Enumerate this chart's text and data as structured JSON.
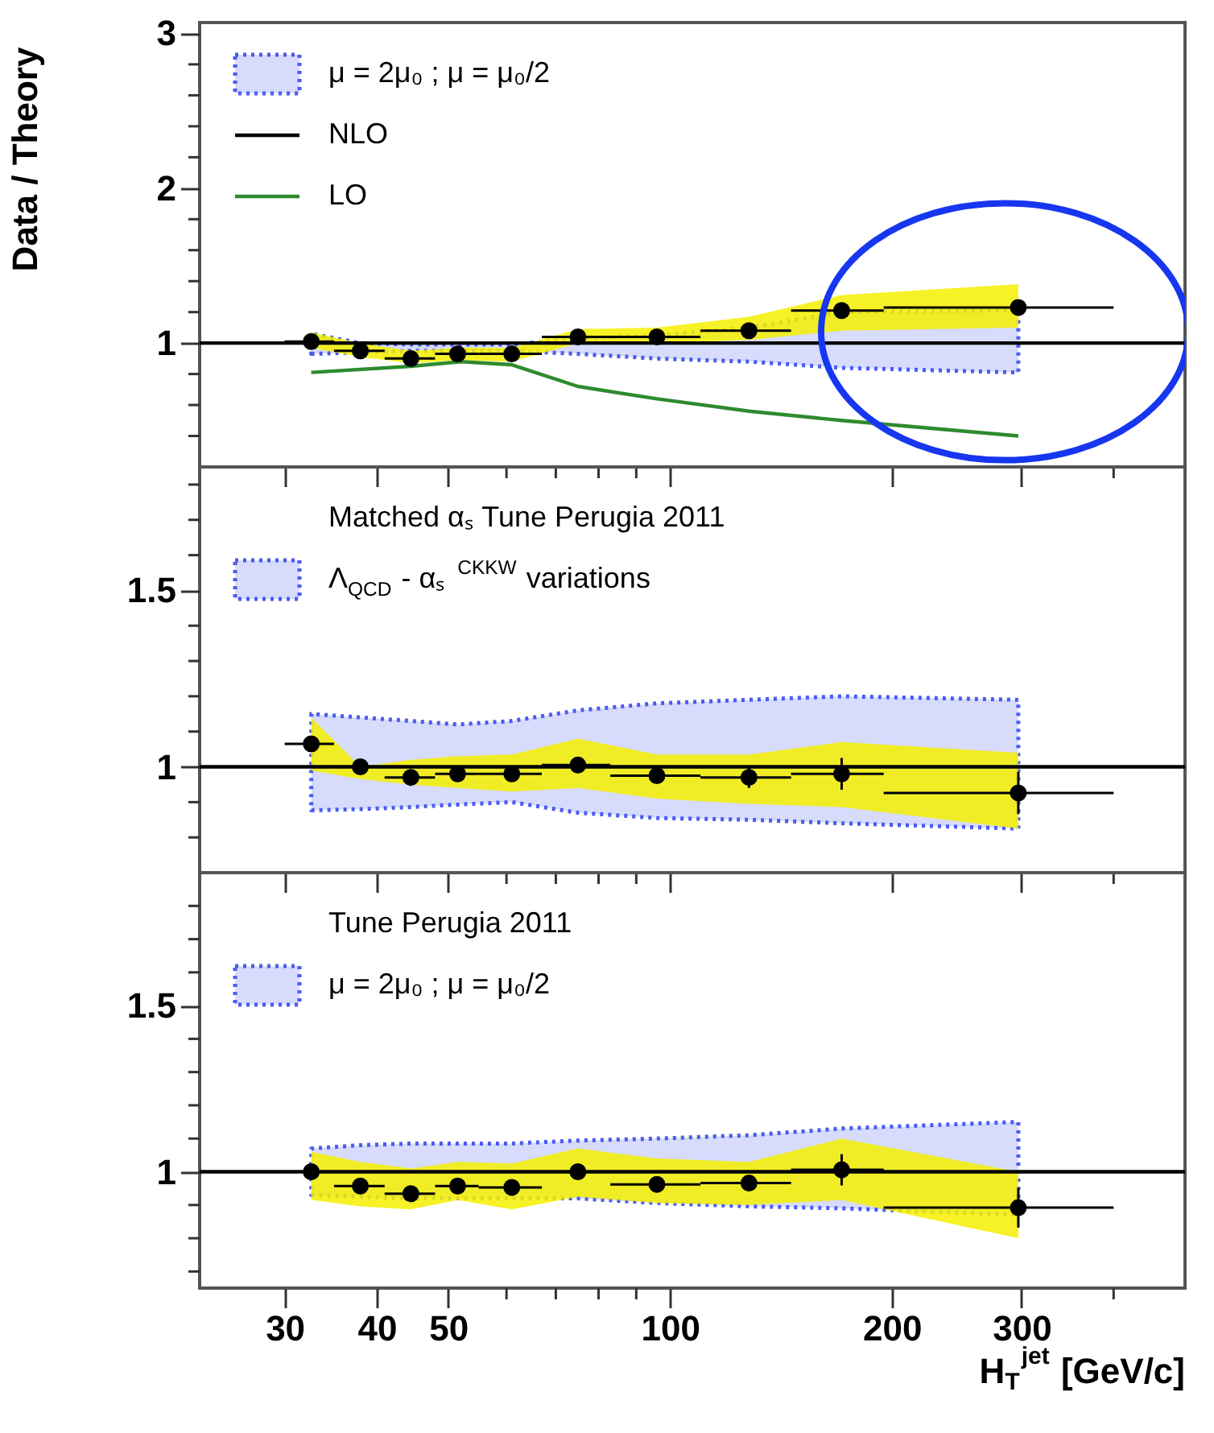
{
  "chart_data": [
    {
      "type": "scatter",
      "ylabel": "Data / Theory",
      "log": "x",
      "xlim": [
        23,
        500
      ],
      "ylim": [
        0.2,
        3.07
      ],
      "xticks": [
        30,
        40,
        50,
        {
          "value": 60,
          "label": null
        },
        {
          "value": 70,
          "label": null
        },
        {
          "value": 80,
          "label": null
        },
        {
          "value": 90,
          "label": null
        },
        100,
        200,
        300,
        {
          "value": 400,
          "label": null
        }
      ],
      "yticks": [
        {
          "value": 0.4,
          "label": null
        },
        {
          "value": 0.6,
          "label": null
        },
        {
          "value": 0.8,
          "label": null
        },
        1,
        {
          "value": 1.2,
          "label": null
        },
        {
          "value": 1.4,
          "label": null
        },
        {
          "value": 1.6,
          "label": null
        },
        {
          "value": 1.8,
          "label": null
        },
        2,
        {
          "value": 2.2,
          "label": null
        },
        {
          "value": 2.4,
          "label": null
        },
        {
          "value": 2.6,
          "label": null
        },
        {
          "value": 2.8,
          "label": null
        },
        3
      ],
      "tick_labels": "y",
      "grid": false,
      "legend": "top left",
      "series": [
        {
          "name": "μ = 2μ₀ ; μ = μ₀/2",
          "type": "line",
          "color": "#4a5cf0",
          "line_style": "dotted",
          "x": [
            32.6,
            38,
            44.5,
            51.5,
            61,
            75,
            96,
            128,
            171,
            297
          ],
          "values": [
            null,
            null,
            null,
            null,
            null,
            null,
            null,
            null,
            null,
            null
          ],
          "lower": [
            0.93,
            0.94,
            0.95,
            0.95,
            0.95,
            0.93,
            0.9,
            0.88,
            0.84,
            0.81
          ],
          "upper": [
            1.06,
            1.0,
            0.99,
            0.99,
            0.99,
            1.03,
            1.05,
            1.1,
            1.2,
            1.21
          ]
        },
        {
          "name": "NLO",
          "type": "line",
          "color": "#000000",
          "x": [
            23,
            500
          ],
          "values": [
            1,
            1
          ]
        },
        {
          "name": "LO",
          "type": "line",
          "color": "#2e8b2e",
          "x": [
            32.6,
            44.5,
            52,
            61,
            75,
            96,
            128,
            171,
            297
          ],
          "values": [
            0.81,
            0.85,
            0.88,
            0.86,
            0.72,
            0.64,
            0.56,
            0.5,
            0.4
          ]
        },
        {
          "color": "#000000",
          "marker": "circle",
          "x": [
            32.6,
            38,
            44.5,
            51.5,
            61,
            75,
            96,
            128,
            171,
            297
          ],
          "values": [
            1.01,
            0.95,
            0.9,
            0.93,
            0.93,
            1.04,
            1.04,
            1.08,
            1.21,
            1.23
          ],
          "lower": [
            0.97,
            0.91,
            0.87,
            0.89,
            0.88,
            1.0,
            1.0,
            1.02,
            1.08,
            1.1
          ],
          "upper": [
            1.07,
            1.0,
            0.95,
            0.97,
            0.97,
            1.09,
            1.1,
            1.17,
            1.31,
            1.38
          ],
          "errors": [
            null,
            null,
            null,
            null,
            null,
            null,
            null,
            null,
            0.03,
            0.04
          ],
          "xerrors": [
            [
              30,
              35
            ],
            [
              35,
              41
            ],
            [
              41,
              48
            ],
            [
              48,
              55
            ],
            [
              55,
              67
            ],
            [
              67,
              83
            ],
            [
              83,
              110
            ],
            [
              110,
              146
            ],
            [
              146,
              195
            ],
            [
              195,
              400
            ]
          ]
        }
      ]
    },
    {
      "type": "scatter",
      "log": "x",
      "xlim": [
        23,
        500
      ],
      "ylim": [
        0.7,
        1.85
      ],
      "xticks": [
        30,
        40,
        50,
        {
          "value": 60,
          "label": null
        },
        {
          "value": 70,
          "label": null
        },
        {
          "value": 80,
          "label": null
        },
        {
          "value": 90,
          "label": null
        },
        100,
        200,
        300,
        {
          "value": 400,
          "label": null
        }
      ],
      "yticks": [
        {
          "value": 0.8,
          "label": null
        },
        {
          "value": 0.9,
          "label": null
        },
        1,
        {
          "value": 1.1,
          "label": null
        },
        {
          "value": 1.2,
          "label": null
        },
        {
          "value": 1.3,
          "label": null
        },
        {
          "value": 1.4,
          "label": null
        },
        1.5,
        {
          "value": 1.6,
          "label": null
        },
        {
          "value": 1.7,
          "label": null
        },
        {
          "value": 1.8,
          "label": null
        }
      ],
      "tick_labels": "y",
      "grid": false,
      "legend": "top left",
      "annotations": [
        "Matched αₛ Tune Perugia 2011"
      ],
      "series": [
        {
          "name": "Λ$_{QCD}$ - αₛ$^{CKKW}$ variations",
          "type": "line",
          "color": "#4a5cf0",
          "line_style": "dotted",
          "x": [
            32.6,
            38,
            44.5,
            51.5,
            61,
            75,
            96,
            128,
            171,
            297
          ],
          "values": [
            null,
            null,
            null,
            null,
            null,
            null,
            null,
            null,
            null,
            null
          ],
          "lower": [
            0.877,
            0.88,
            0.886,
            0.893,
            0.9,
            0.87,
            0.855,
            0.85,
            0.84,
            0.825
          ],
          "upper": [
            1.15,
            1.14,
            1.13,
            1.12,
            1.13,
            1.16,
            1.18,
            1.19,
            1.2,
            1.19
          ]
        },
        {
          "type": "line",
          "color": "#000000",
          "x": [
            23,
            500
          ],
          "values": [
            1,
            1
          ]
        },
        {
          "color": "#000000",
          "marker": "circle",
          "x": [
            32.6,
            38,
            44.5,
            51.5,
            61,
            75,
            96,
            128,
            171,
            297
          ],
          "values": [
            1.065,
            1.0,
            0.97,
            0.98,
            0.98,
            1.005,
            0.975,
            0.97,
            0.98,
            0.926
          ],
          "lower": [
            0.99,
            0.965,
            0.95,
            0.94,
            0.93,
            0.94,
            0.91,
            0.895,
            0.886,
            0.825
          ],
          "upper": [
            1.14,
            1.0,
            1.02,
            1.03,
            1.035,
            1.08,
            1.035,
            1.035,
            1.07,
            1.04
          ],
          "errors": [
            null,
            null,
            null,
            null,
            null,
            null,
            null,
            0.03,
            0.045,
            0.06
          ],
          "xerrors": [
            [
              30,
              35
            ],
            [
              35,
              41
            ],
            [
              41,
              48
            ],
            [
              48,
              55
            ],
            [
              55,
              67
            ],
            [
              67,
              83
            ],
            [
              83,
              110
            ],
            [
              110,
              146
            ],
            [
              146,
              195
            ],
            [
              195,
              400
            ]
          ]
        }
      ]
    },
    {
      "type": "scatter",
      "xlabel": "H$_{T}$$^{jet}$ [GeV/c]",
      "log": "x",
      "xlim": [
        23,
        500
      ],
      "ylim": [
        0.65,
        1.9
      ],
      "xticks": [
        30,
        40,
        50,
        {
          "value": 60,
          "label": null
        },
        {
          "value": 70,
          "label": null
        },
        {
          "value": 80,
          "label": null
        },
        {
          "value": 90,
          "label": null
        },
        100,
        200,
        300,
        {
          "value": 400,
          "label": null
        }
      ],
      "yticks": [
        {
          "value": 0.7,
          "label": null
        },
        {
          "value": 0.8,
          "label": null
        },
        {
          "value": 0.9,
          "label": null
        },
        1,
        {
          "value": 1.1,
          "label": null
        },
        {
          "value": 1.2,
          "label": null
        },
        {
          "value": 1.3,
          "label": null
        },
        {
          "value": 1.4,
          "label": null
        },
        1.5,
        {
          "value": 1.6,
          "label": null
        },
        {
          "value": 1.7,
          "label": null
        },
        {
          "value": 1.8,
          "label": null
        }
      ],
      "grid": false,
      "legend": "top left",
      "annotations": [
        "Tune Perugia 2011"
      ],
      "series": [
        {
          "name": "μ = 2μ₀ ; μ = μ₀/2",
          "type": "line",
          "color": "#4a5cf0",
          "line_style": "dotted",
          "x": [
            32.6,
            38,
            44.5,
            51.5,
            61,
            75,
            96,
            128,
            171,
            297
          ],
          "values": [
            null,
            null,
            null,
            null,
            null,
            null,
            null,
            null,
            null,
            null
          ],
          "lower": [
            0.93,
            0.925,
            0.92,
            0.92,
            0.92,
            0.92,
            0.906,
            0.896,
            0.89,
            0.87
          ],
          "upper": [
            1.07,
            1.08,
            1.085,
            1.085,
            1.085,
            1.094,
            1.1,
            1.11,
            1.13,
            1.15
          ]
        },
        {
          "type": "line",
          "color": "#000000",
          "x": [
            23,
            500
          ],
          "values": [
            1,
            1
          ]
        },
        {
          "color": "#000000",
          "marker": "circle",
          "x": [
            32.6,
            38,
            44.5,
            51.5,
            61,
            75,
            96,
            128,
            171,
            297
          ],
          "values": [
            1.0,
            0.957,
            0.934,
            0.957,
            0.953,
            1.0,
            0.962,
            0.966,
            1.006,
            0.892
          ],
          "lower": [
            0.915,
            0.896,
            0.887,
            0.915,
            0.887,
            0.925,
            0.906,
            0.9,
            0.915,
            0.8
          ],
          "upper": [
            1.06,
            1.03,
            1.01,
            1.03,
            1.025,
            1.07,
            1.04,
            1.03,
            1.1,
            1.0
          ],
          "errors": [
            null,
            null,
            null,
            null,
            null,
            null,
            null,
            0.02,
            0.047,
            0.06
          ],
          "xerrors": [
            [
              30,
              35
            ],
            [
              35,
              41
            ],
            [
              41,
              48
            ],
            [
              48,
              55
            ],
            [
              55,
              67
            ],
            [
              67,
              83
            ],
            [
              83,
              110
            ],
            [
              110,
              146
            ],
            [
              146,
              195
            ],
            [
              195,
              400
            ]
          ]
        }
      ]
    }
  ]
}
